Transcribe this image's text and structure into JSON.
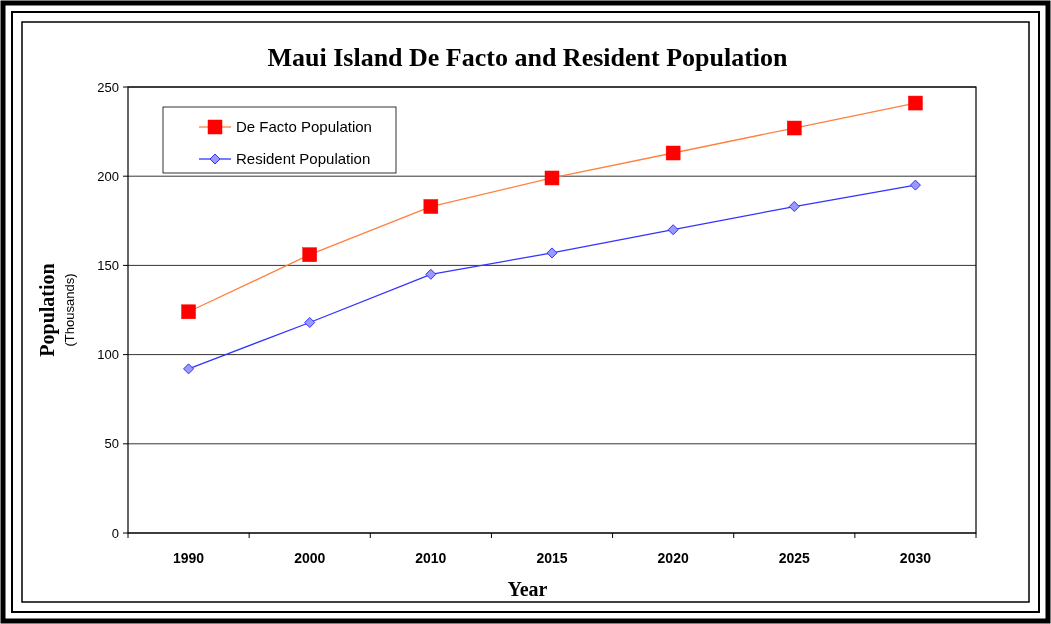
{
  "chart_data": {
    "type": "line",
    "title": "Maui Island De Facto and Resident Population",
    "xlabel": "Year",
    "ylabel": "Population",
    "subtitle": "(Thousands)",
    "categories": [
      "1990",
      "2000",
      "2010",
      "2015",
      "2020",
      "2025",
      "2030"
    ],
    "series": [
      {
        "name": "De Facto Population",
        "color": "#ff8040",
        "marker": "square",
        "values": [
          124,
          156,
          183,
          199,
          213,
          227,
          241
        ]
      },
      {
        "name": "Resident Population",
        "color": "#3333ff",
        "marker": "diamond",
        "values": [
          92,
          118,
          145,
          157,
          170,
          183,
          195
        ]
      }
    ],
    "ylim": [
      0,
      250
    ],
    "yticks": [
      0,
      50,
      100,
      150,
      200,
      250
    ],
    "grid": "y",
    "legend": "top left"
  }
}
